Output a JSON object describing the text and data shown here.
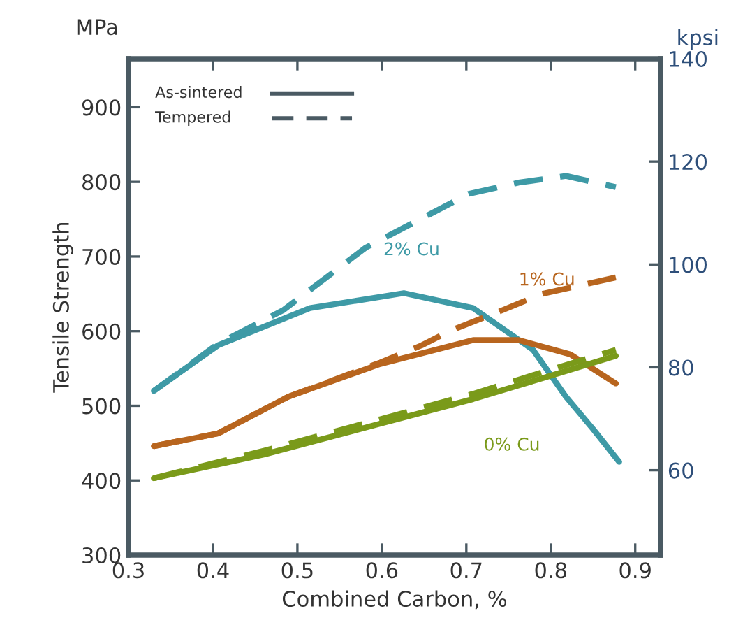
{
  "chart_data": {
    "type": "line",
    "xlabel": "Combined Carbon, %",
    "ylabel": "Tensile Strength",
    "y2label": "kpsi",
    "xlim": [
      0.3,
      0.93
    ],
    "xticks": [
      0.3,
      0.4,
      0.5,
      0.6,
      0.7,
      0.8,
      0.9
    ],
    "ylim": [
      300,
      965
    ],
    "yticks": [
      300,
      400,
      500,
      600,
      700,
      800,
      900
    ],
    "y2lim": [
      43.5,
      140
    ],
    "y2ticks": [
      60,
      80,
      100,
      120,
      140
    ],
    "grid": false,
    "marker": "none",
    "series": [
      {
        "name": "2% Cu",
        "color": "#3e9aa6",
        "line_style": "solid",
        "x": [
          0.33,
          0.406,
          0.515,
          0.626,
          0.708,
          0.779,
          0.818,
          0.85,
          0.881
        ],
        "values": [
          520,
          581,
          631,
          651,
          631,
          575,
          512,
          469,
          425
        ]
      },
      {
        "color": "#3e9aa6",
        "line_style": "dashed",
        "x": [
          0.33,
          0.406,
          0.483,
          0.581,
          0.703,
          0.762,
          0.818,
          0.877
        ],
        "values": [
          520,
          583,
          628,
          712,
          784,
          799,
          808,
          793
        ]
      },
      {
        "name": "1% Cu",
        "color": "#b8651e",
        "line_style": "solid",
        "x": [
          0.33,
          0.406,
          0.489,
          0.598,
          0.708,
          0.762,
          0.823,
          0.877
        ],
        "values": [
          446,
          463,
          512,
          556,
          588,
          588,
          569,
          530
        ]
      },
      {
        "color": "#b8651e",
        "line_style": "dashed",
        "x": [
          0.33,
          0.406,
          0.489,
          0.598,
          0.647,
          0.68,
          0.736,
          0.79,
          0.877
        ],
        "values": [
          446,
          463,
          512,
          558,
          581,
          600,
          625,
          650,
          672
        ]
      },
      {
        "name": "0% Cu",
        "color": "#7a9a1a",
        "line_style": "solid",
        "x": [
          0.33,
          0.461,
          0.598,
          0.708,
          0.79,
          0.877
        ],
        "values": [
          403,
          435,
          476,
          509,
          537,
          567
        ]
      },
      {
        "color": "#7a9a1a",
        "line_style": "dashed",
        "x": [
          0.33,
          0.461,
          0.598,
          0.708,
          0.79,
          0.877
        ],
        "values": [
          403,
          440,
          482,
          516,
          545,
          575
        ]
      }
    ],
    "annotations": [
      "MPa",
      "As-sintered",
      "Tempered"
    ]
  }
}
